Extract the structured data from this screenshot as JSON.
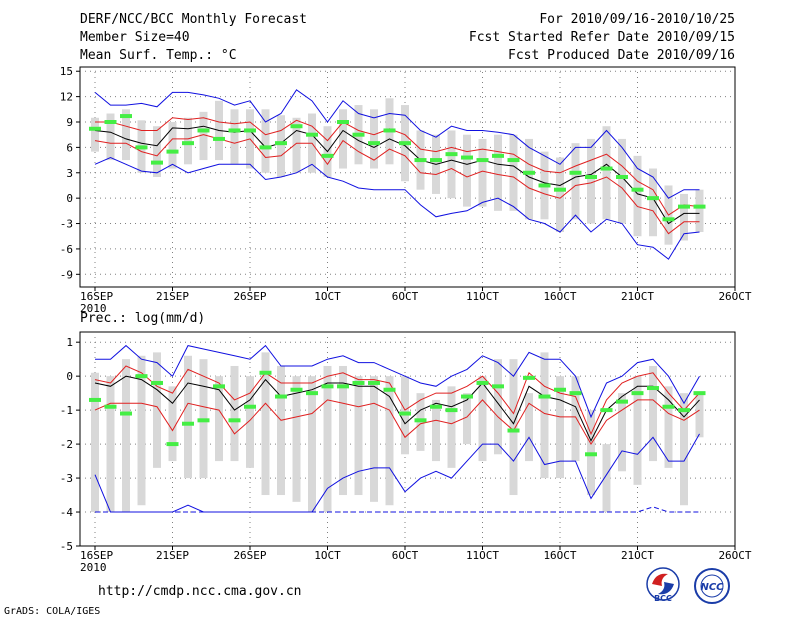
{
  "header": {
    "title": "DERF/NCC/BCC Monthly Forecast",
    "member_size": "Member Size=40",
    "variable": "Mean Surf. Temp.: °C",
    "period": "For 2010/09/16-2010/10/25",
    "started": "Fcst Started Refer Date 2010/09/15",
    "produced": "Fcst Produced Date 2010/09/16"
  },
  "footer": {
    "url": "http://cmdp.ncc.cma.gov.cn",
    "credit": "GrADS: COLA/IGES",
    "logo_bcc": "BCC",
    "logo_ncc": "NCC"
  },
  "colors": {
    "box": "#d8d8d8",
    "median": "#44ee44",
    "mean": "#000000",
    "inner": "#e02020",
    "outer": "#1010e0",
    "grid": "#808080"
  },
  "chart_data": [
    {
      "type": "line",
      "title": "Mean Surf. Temp.: °C",
      "xlabel": "",
      "ylabel": "",
      "ylim": [
        -10.5,
        15.5
      ],
      "yticks": [
        15,
        12,
        9,
        6,
        3,
        0,
        -3,
        -6,
        -9
      ],
      "xticks": [
        {
          "index": 0,
          "label": "16SEP",
          "sub": "2010"
        },
        {
          "index": 5,
          "label": "21SEP"
        },
        {
          "index": 10,
          "label": "26SEP"
        },
        {
          "index": 15,
          "label": "1OCT"
        },
        {
          "index": 20,
          "label": "6OCT"
        },
        {
          "index": 25,
          "label": "11OCT"
        },
        {
          "index": 30,
          "label": "16OCT"
        },
        {
          "index": 35,
          "label": "21OCT"
        },
        {
          "index": 40,
          "label": "26OCT"
        }
      ],
      "categories": [
        "09-16",
        "09-17",
        "09-18",
        "09-19",
        "09-20",
        "09-21",
        "09-22",
        "09-23",
        "09-24",
        "09-25",
        "09-26",
        "09-27",
        "09-28",
        "09-29",
        "09-30",
        "10-01",
        "10-02",
        "10-03",
        "10-04",
        "10-05",
        "10-06",
        "10-07",
        "10-08",
        "10-09",
        "10-10",
        "10-11",
        "10-12",
        "10-13",
        "10-14",
        "10-15",
        "10-16",
        "10-17",
        "10-18",
        "10-19",
        "10-20",
        "10-21",
        "10-22",
        "10-23",
        "10-24",
        "10-25"
      ],
      "series": [
        {
          "name": "box_high",
          "values": [
            9.5,
            10.0,
            10.5,
            9.2,
            8.5,
            9.0,
            9.5,
            10.2,
            11.5,
            10.5,
            10.5,
            10.5,
            9.8,
            9.5,
            10.0,
            8.5,
            10.5,
            11.0,
            10.5,
            11.8,
            11.0,
            8.0,
            7.5,
            8.0,
            7.5,
            7.0,
            7.5,
            7.5,
            7.0,
            5.5,
            4.8,
            6.5,
            7.0,
            8.5,
            7.0,
            5.0,
            3.5,
            1.5,
            0.5,
            1.0
          ]
        },
        {
          "name": "box_low",
          "values": [
            5.5,
            4.5,
            4.5,
            3.0,
            2.5,
            3.5,
            4.0,
            4.5,
            4.5,
            4.0,
            3.5,
            3.0,
            2.5,
            3.0,
            3.0,
            2.5,
            3.5,
            4.0,
            3.5,
            4.0,
            2.0,
            1.0,
            0.5,
            0.0,
            -1.0,
            -1.0,
            -1.5,
            -1.5,
            -2.5,
            -2.5,
            -4.0,
            -2.5,
            -3.0,
            -2.5,
            -3.0,
            -4.5,
            -4.5,
            -5.5,
            -5.0,
            -4.0
          ]
        },
        {
          "name": "median",
          "values": [
            8.2,
            9.0,
            9.7,
            6.0,
            4.2,
            5.5,
            6.5,
            8.0,
            7.0,
            8.0,
            8.0,
            6.0,
            6.5,
            8.5,
            7.5,
            5.0,
            9.0,
            7.5,
            6.5,
            8.0,
            6.5,
            4.5,
            4.5,
            5.2,
            4.8,
            4.5,
            5.0,
            4.5,
            3.0,
            1.5,
            1.0,
            3.0,
            2.5,
            3.5,
            2.5,
            1.0,
            0.0,
            -2.5,
            -1.0,
            -1.0
          ]
        },
        {
          "name": "mean",
          "values": [
            8.0,
            7.8,
            7.0,
            6.5,
            6.2,
            8.3,
            8.2,
            8.5,
            8.0,
            7.8,
            8.0,
            6.0,
            6.5,
            8.0,
            7.5,
            5.5,
            8.0,
            6.8,
            6.0,
            7.0,
            6.2,
            4.5,
            4.0,
            4.5,
            4.0,
            4.5,
            4.0,
            3.8,
            2.5,
            1.8,
            1.5,
            2.5,
            2.8,
            4.0,
            2.5,
            0.5,
            0.0,
            -3.0,
            -1.8,
            -1.8
          ]
        },
        {
          "name": "inner_upper",
          "values": [
            9.0,
            9.0,
            8.5,
            8.0,
            8.0,
            9.5,
            9.3,
            9.5,
            9.0,
            8.8,
            9.0,
            7.5,
            8.0,
            9.2,
            8.5,
            6.8,
            9.0,
            8.0,
            7.5,
            8.2,
            7.5,
            5.8,
            5.5,
            6.0,
            5.5,
            5.8,
            5.5,
            5.2,
            4.0,
            3.2,
            3.0,
            3.8,
            4.5,
            5.2,
            3.8,
            2.0,
            1.0,
            -2.0,
            -0.8,
            -1.0
          ]
        },
        {
          "name": "inner_lower",
          "values": [
            6.8,
            6.5,
            6.5,
            5.5,
            5.0,
            7.0,
            7.0,
            7.5,
            7.0,
            6.5,
            7.0,
            4.8,
            5.0,
            6.5,
            6.5,
            4.0,
            6.8,
            5.5,
            4.5,
            5.8,
            5.0,
            3.0,
            2.8,
            3.5,
            2.5,
            3.2,
            2.8,
            2.5,
            1.2,
            0.5,
            0.0,
            1.5,
            1.8,
            2.5,
            1.2,
            -1.0,
            -1.5,
            -4.2,
            -2.8,
            -2.8
          ]
        },
        {
          "name": "outer_upper",
          "values": [
            12.5,
            11.0,
            11.0,
            11.2,
            10.8,
            12.5,
            12.5,
            12.2,
            11.8,
            11.0,
            11.5,
            9.0,
            10.0,
            12.8,
            11.5,
            9.0,
            11.5,
            10.0,
            9.5,
            10.0,
            9.8,
            8.0,
            7.2,
            8.5,
            8.0,
            8.0,
            7.8,
            7.5,
            6.0,
            5.0,
            4.0,
            6.0,
            6.0,
            8.0,
            6.0,
            3.5,
            2.5,
            0.0,
            1.0,
            1.0
          ]
        },
        {
          "name": "outer_lower",
          "values": [
            4.0,
            4.8,
            4.0,
            3.2,
            3.0,
            4.0,
            3.0,
            3.5,
            4.0,
            4.0,
            4.0,
            2.2,
            2.5,
            3.0,
            4.0,
            2.5,
            2.0,
            1.2,
            1.0,
            1.0,
            1.0,
            -0.8,
            -2.2,
            -1.8,
            -1.5,
            -0.5,
            0.0,
            -1.0,
            -2.5,
            -3.0,
            -4.0,
            -2.0,
            -4.0,
            -2.5,
            -3.0,
            -5.5,
            -5.8,
            -7.2,
            -4.2,
            -4.0
          ]
        }
      ]
    },
    {
      "type": "line",
      "title": "Prec.: log(mm/d)",
      "xlabel": "",
      "ylabel": "",
      "ylim": [
        -5,
        1.3
      ],
      "yticks": [
        1,
        0,
        -1,
        -2,
        -3,
        -4,
        -5
      ],
      "xticks": [
        {
          "index": 0,
          "label": "16SEP",
          "sub": "2010"
        },
        {
          "index": 5,
          "label": "21SEP"
        },
        {
          "index": 10,
          "label": "26SEP"
        },
        {
          "index": 15,
          "label": "1OCT"
        },
        {
          "index": 20,
          "label": "6OCT"
        },
        {
          "index": 25,
          "label": "11OCT"
        },
        {
          "index": 30,
          "label": "16OCT"
        },
        {
          "index": 35,
          "label": "21OCT"
        },
        {
          "index": 40,
          "label": "26OCT"
        }
      ],
      "categories": [
        "09-16",
        "09-17",
        "09-18",
        "09-19",
        "09-20",
        "09-21",
        "09-22",
        "09-23",
        "09-24",
        "09-25",
        "09-26",
        "09-27",
        "09-28",
        "09-29",
        "09-30",
        "10-01",
        "10-02",
        "10-03",
        "10-04",
        "10-05",
        "10-06",
        "10-07",
        "10-08",
        "10-09",
        "10-10",
        "10-11",
        "10-12",
        "10-13",
        "10-14",
        "10-15",
        "10-16",
        "10-17",
        "10-18",
        "10-19",
        "10-20",
        "10-21",
        "10-22",
        "10-23",
        "10-24",
        "10-25"
      ],
      "series": [
        {
          "name": "box_high",
          "values": [
            0.1,
            0.0,
            0.5,
            0.6,
            0.7,
            -0.3,
            0.6,
            0.5,
            0.0,
            0.3,
            0.0,
            0.7,
            0.3,
            0.0,
            0.0,
            0.3,
            0.3,
            0.0,
            0.0,
            0.0,
            0.0,
            -0.5,
            -0.7,
            -0.3,
            -0.5,
            0.0,
            0.5,
            0.5,
            -0.5,
            0.7,
            0.0,
            0.0,
            -1.0,
            -2.0,
            -0.5,
            0.0,
            0.3,
            -0.3,
            -0.5,
            -0.5
          ]
        },
        {
          "name": "box_low",
          "values": [
            -4.0,
            -4.0,
            -4.0,
            -3.8,
            -2.7,
            -2.5,
            -3.0,
            -3.0,
            -2.5,
            -2.5,
            -2.7,
            -3.5,
            -3.5,
            -3.7,
            -4.0,
            -4.0,
            -3.5,
            -3.5,
            -3.7,
            -3.8,
            -2.3,
            -2.2,
            -2.5,
            -2.7,
            -2.0,
            -2.5,
            -2.3,
            -3.5,
            -2.5,
            -3.0,
            -3.0,
            -2.5,
            -3.5,
            -4.0,
            -2.8,
            -3.2,
            -2.5,
            -2.7,
            -3.8,
            -1.8
          ]
        },
        {
          "name": "median",
          "values": [
            -0.7,
            -0.9,
            -1.1,
            0.0,
            -0.2,
            -2.0,
            -1.4,
            -1.3,
            -0.3,
            -1.3,
            -0.9,
            0.1,
            -0.6,
            -0.4,
            -0.5,
            -0.3,
            -0.3,
            -0.2,
            -0.2,
            -0.4,
            -1.1,
            -1.3,
            -0.9,
            -1.0,
            -0.6,
            -0.2,
            -0.3,
            -1.6,
            -0.05,
            -0.6,
            -0.4,
            -0.5,
            -2.3,
            -1.0,
            -0.75,
            -0.5,
            -0.35,
            -0.9,
            -1.0,
            -0.5
          ]
        },
        {
          "name": "mean",
          "values": [
            -0.2,
            -0.3,
            0.0,
            -0.1,
            -0.4,
            -0.8,
            -0.2,
            -0.3,
            -0.4,
            -1.0,
            -0.7,
            -0.1,
            -0.6,
            -0.5,
            -0.4,
            -0.2,
            -0.2,
            -0.3,
            -0.3,
            -0.6,
            -1.4,
            -1.0,
            -0.8,
            -0.9,
            -0.7,
            -0.2,
            -0.8,
            -1.4,
            -0.3,
            -0.6,
            -0.7,
            -0.9,
            -1.9,
            -1.0,
            -0.6,
            -0.3,
            -0.3,
            -0.7,
            -1.2,
            -0.7
          ]
        },
        {
          "name": "inner_upper",
          "values": [
            -0.1,
            -0.2,
            0.3,
            0.1,
            -0.3,
            -0.5,
            0.2,
            0.0,
            -0.2,
            -0.7,
            -0.5,
            0.1,
            -0.2,
            -0.2,
            -0.2,
            0.0,
            0.1,
            -0.1,
            -0.1,
            -0.2,
            -1.0,
            -0.7,
            -0.5,
            -0.5,
            -0.3,
            0.0,
            -0.5,
            -1.1,
            0.1,
            -0.3,
            -0.5,
            -0.6,
            -1.7,
            -0.7,
            -0.2,
            0.0,
            0.1,
            -0.5,
            -1.0,
            -0.5
          ]
        },
        {
          "name": "inner_lower",
          "values": [
            -1.0,
            -0.8,
            -0.8,
            -0.8,
            -0.9,
            -1.6,
            -0.8,
            -0.9,
            -1.0,
            -1.7,
            -1.3,
            -0.8,
            -1.3,
            -1.2,
            -1.1,
            -0.7,
            -0.8,
            -0.9,
            -0.8,
            -1.0,
            -1.8,
            -1.4,
            -1.3,
            -1.4,
            -1.2,
            -0.7,
            -1.2,
            -1.6,
            -0.8,
            -1.1,
            -1.2,
            -1.2,
            -2.0,
            -1.3,
            -1.0,
            -0.7,
            -0.7,
            -1.1,
            -1.3,
            -1.0
          ]
        },
        {
          "name": "outer_upper",
          "values": [
            0.5,
            0.5,
            0.9,
            0.5,
            0.4,
            0.0,
            0.9,
            0.8,
            0.7,
            0.6,
            0.5,
            0.9,
            0.3,
            0.3,
            0.3,
            0.5,
            0.6,
            0.4,
            0.4,
            0.2,
            0.0,
            -0.2,
            -0.3,
            0.0,
            0.2,
            0.6,
            0.4,
            0.0,
            0.7,
            0.5,
            0.5,
            0.0,
            -1.2,
            -0.2,
            0.0,
            0.4,
            0.5,
            0.0,
            -0.8,
            0.0
          ]
        },
        {
          "name": "outer_lower",
          "values": [
            -2.9,
            -4.0,
            -4.0,
            -4.0,
            -4.0,
            -4.0,
            -3.8,
            -4.0,
            -4.0,
            -4.0,
            -4.0,
            -4.0,
            -4.0,
            -4.0,
            -4.0,
            -3.3,
            -3.0,
            -2.8,
            -2.7,
            -2.7,
            -3.4,
            -3.0,
            -2.8,
            -3.0,
            -2.5,
            -2.0,
            -2.0,
            -2.5,
            -1.8,
            -2.6,
            -2.5,
            -2.5,
            -3.6,
            -2.9,
            -2.2,
            -2.3,
            -1.8,
            -2.5,
            -2.5,
            -1.7
          ]
        },
        {
          "name": "min_line",
          "values": [
            -4.0,
            -4.0,
            -4.0,
            -4.0,
            -4.0,
            -4.0,
            -4.0,
            -4.0,
            -4.0,
            -4.0,
            -4.0,
            -4.0,
            -4.0,
            -4.0,
            -4.0,
            -4.0,
            -4.0,
            -4.0,
            -4.0,
            -4.0,
            -4.0,
            -4.0,
            -4.0,
            -4.0,
            -4.0,
            -4.0,
            -4.0,
            -4.0,
            -4.0,
            -4.0,
            -4.0,
            -4.0,
            -4.0,
            -4.0,
            -4.0,
            -4.0,
            -3.85,
            -4.0,
            -4.0,
            -4.0
          ]
        }
      ]
    }
  ]
}
